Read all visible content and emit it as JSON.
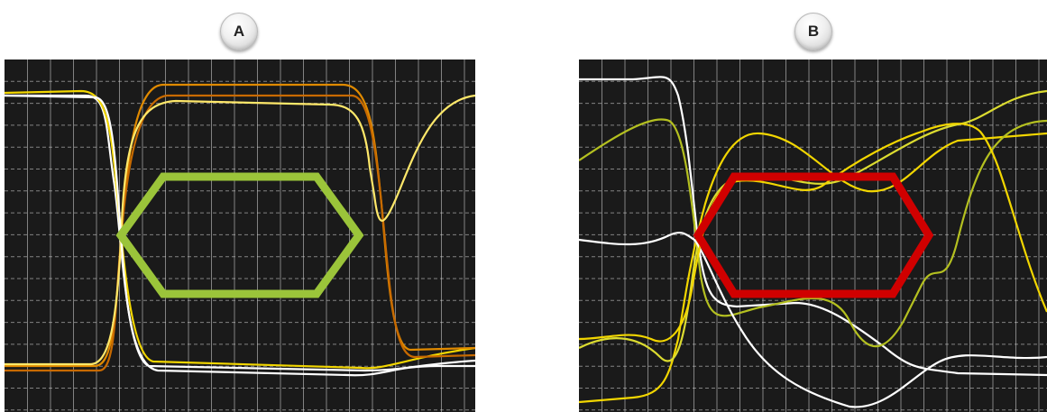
{
  "figure": {
    "panels": [
      {
        "label": "A",
        "mask_color": "#9bc43a",
        "trace_colors": [
          "#ffffff",
          "#f2d600",
          "#e08a00",
          "#c86a00",
          "#ffe86a"
        ]
      },
      {
        "label": "B",
        "mask_color": "#d00000",
        "trace_colors": [
          "#ffffff",
          "#f2d600",
          "#b4c020",
          "#dcdc30"
        ]
      }
    ],
    "background_color": "#1a1a1a",
    "grid_color": "#d8d8d8"
  }
}
